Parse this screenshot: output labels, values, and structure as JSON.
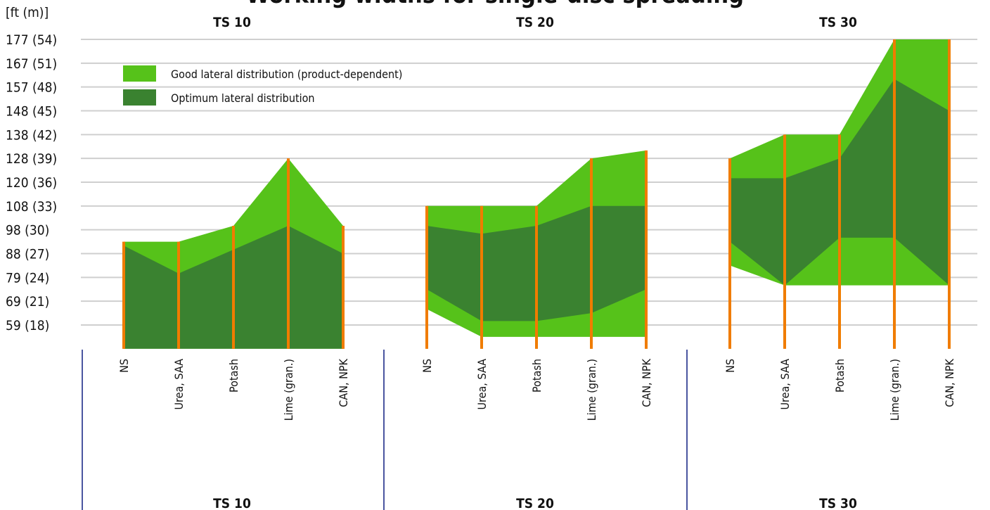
{
  "chart_data": {
    "type": "area",
    "title": "Working widths for single-disc spreading",
    "y_unit_label": "[ft (m)]",
    "y_ticks": [
      "59 (18)",
      "69 (21)",
      "79 (24)",
      "88 (27)",
      "98 (30)",
      "108 (33)",
      "120 (36)",
      "128 (39)",
      "138 (42)",
      "148 (45)",
      "157 (48)",
      "167 (51)",
      "177 (54)"
    ],
    "ylim_m": [
      15,
      54
    ],
    "grid": true,
    "legend_position": "top-left",
    "legend": [
      {
        "label": "Good lateral distribution (product-dependent)",
        "color": "#56c21a"
      },
      {
        "label": "Optimum lateral distribution",
        "color": "#3a8230"
      }
    ],
    "colors": {
      "good": "#56c21a",
      "optimum": "#3a8230",
      "marker": "#f07c00",
      "divider": "#4a55a0",
      "grid": "#cfcfcf"
    },
    "categories": [
      "NS",
      "Urea, SAA",
      "Potash",
      "Lime (gran.)",
      "CAN, NPK"
    ],
    "panels": [
      {
        "name": "TS 10",
        "good_low_m": [
          15,
          15,
          15,
          15,
          15
        ],
        "good_high_m": [
          28.5,
          28.5,
          30.5,
          39.0,
          30.5
        ],
        "opt_low_m": [
          15,
          15,
          15,
          15,
          15
        ],
        "opt_high_m": [
          28.0,
          24.5,
          27.5,
          30.5,
          27.0
        ]
      },
      {
        "name": "TS 20",
        "good_low_m": [
          20.0,
          16.5,
          16.5,
          16.5,
          16.5
        ],
        "good_high_m": [
          33.0,
          33.0,
          33.0,
          39.0,
          40.0
        ],
        "opt_low_m": [
          22.5,
          18.5,
          18.5,
          19.5,
          22.5
        ],
        "opt_high_m": [
          30.5,
          29.5,
          30.5,
          33.0,
          33.0
        ]
      },
      {
        "name": "TS 30",
        "good_low_m": [
          25.5,
          23.0,
          23.0,
          23.0,
          23.0
        ],
        "good_high_m": [
          39.0,
          42.0,
          42.0,
          54.0,
          54.0
        ],
        "opt_low_m": [
          28.5,
          23.0,
          29.0,
          29.0,
          23.0
        ],
        "opt_high_m": [
          36.5,
          36.5,
          39.0,
          49.0,
          45.0
        ]
      }
    ]
  }
}
